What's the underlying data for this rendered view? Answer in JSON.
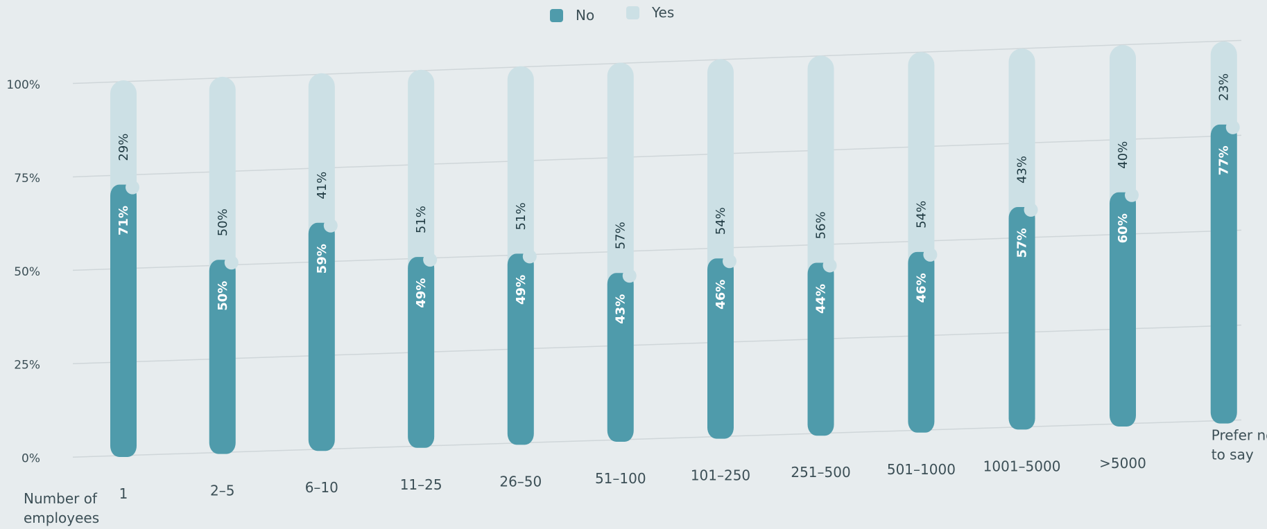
{
  "chart_data": {
    "type": "bar",
    "stacked": true,
    "orientation": "vertical",
    "title": "",
    "xlabel": "Number of employees",
    "ylabel": "",
    "ylim": [
      0,
      100
    ],
    "y_ticks": [
      "0%",
      "25%",
      "50%",
      "75%",
      "100%"
    ],
    "grid": true,
    "legend_position": "top-center",
    "categories": [
      "1",
      "2–5",
      "6–10",
      "11–25",
      "26–50",
      "51–100",
      "101–250",
      "251–500",
      "501–1000",
      "1001–5000",
      ">5000",
      "Prefer not to say"
    ],
    "series": [
      {
        "name": "No",
        "color": "#4f9bab",
        "values": [
          71,
          50,
          59,
          49,
          49,
          43,
          46,
          44,
          46,
          57,
          60,
          77
        ],
        "labels": [
          "71%",
          "50%",
          "59%",
          "49%",
          "49%",
          "43%",
          "46%",
          "44%",
          "46%",
          "57%",
          "60%",
          "77%"
        ]
      },
      {
        "name": "Yes",
        "color": "#cce0e5",
        "values": [
          29,
          50,
          41,
          51,
          51,
          57,
          54,
          56,
          54,
          43,
          40,
          23
        ],
        "labels": [
          "29%",
          "50%",
          "41%",
          "51%",
          "51%",
          "57%",
          "54%",
          "56%",
          "54%",
          "43%",
          "40%",
          "23%"
        ]
      }
    ]
  }
}
